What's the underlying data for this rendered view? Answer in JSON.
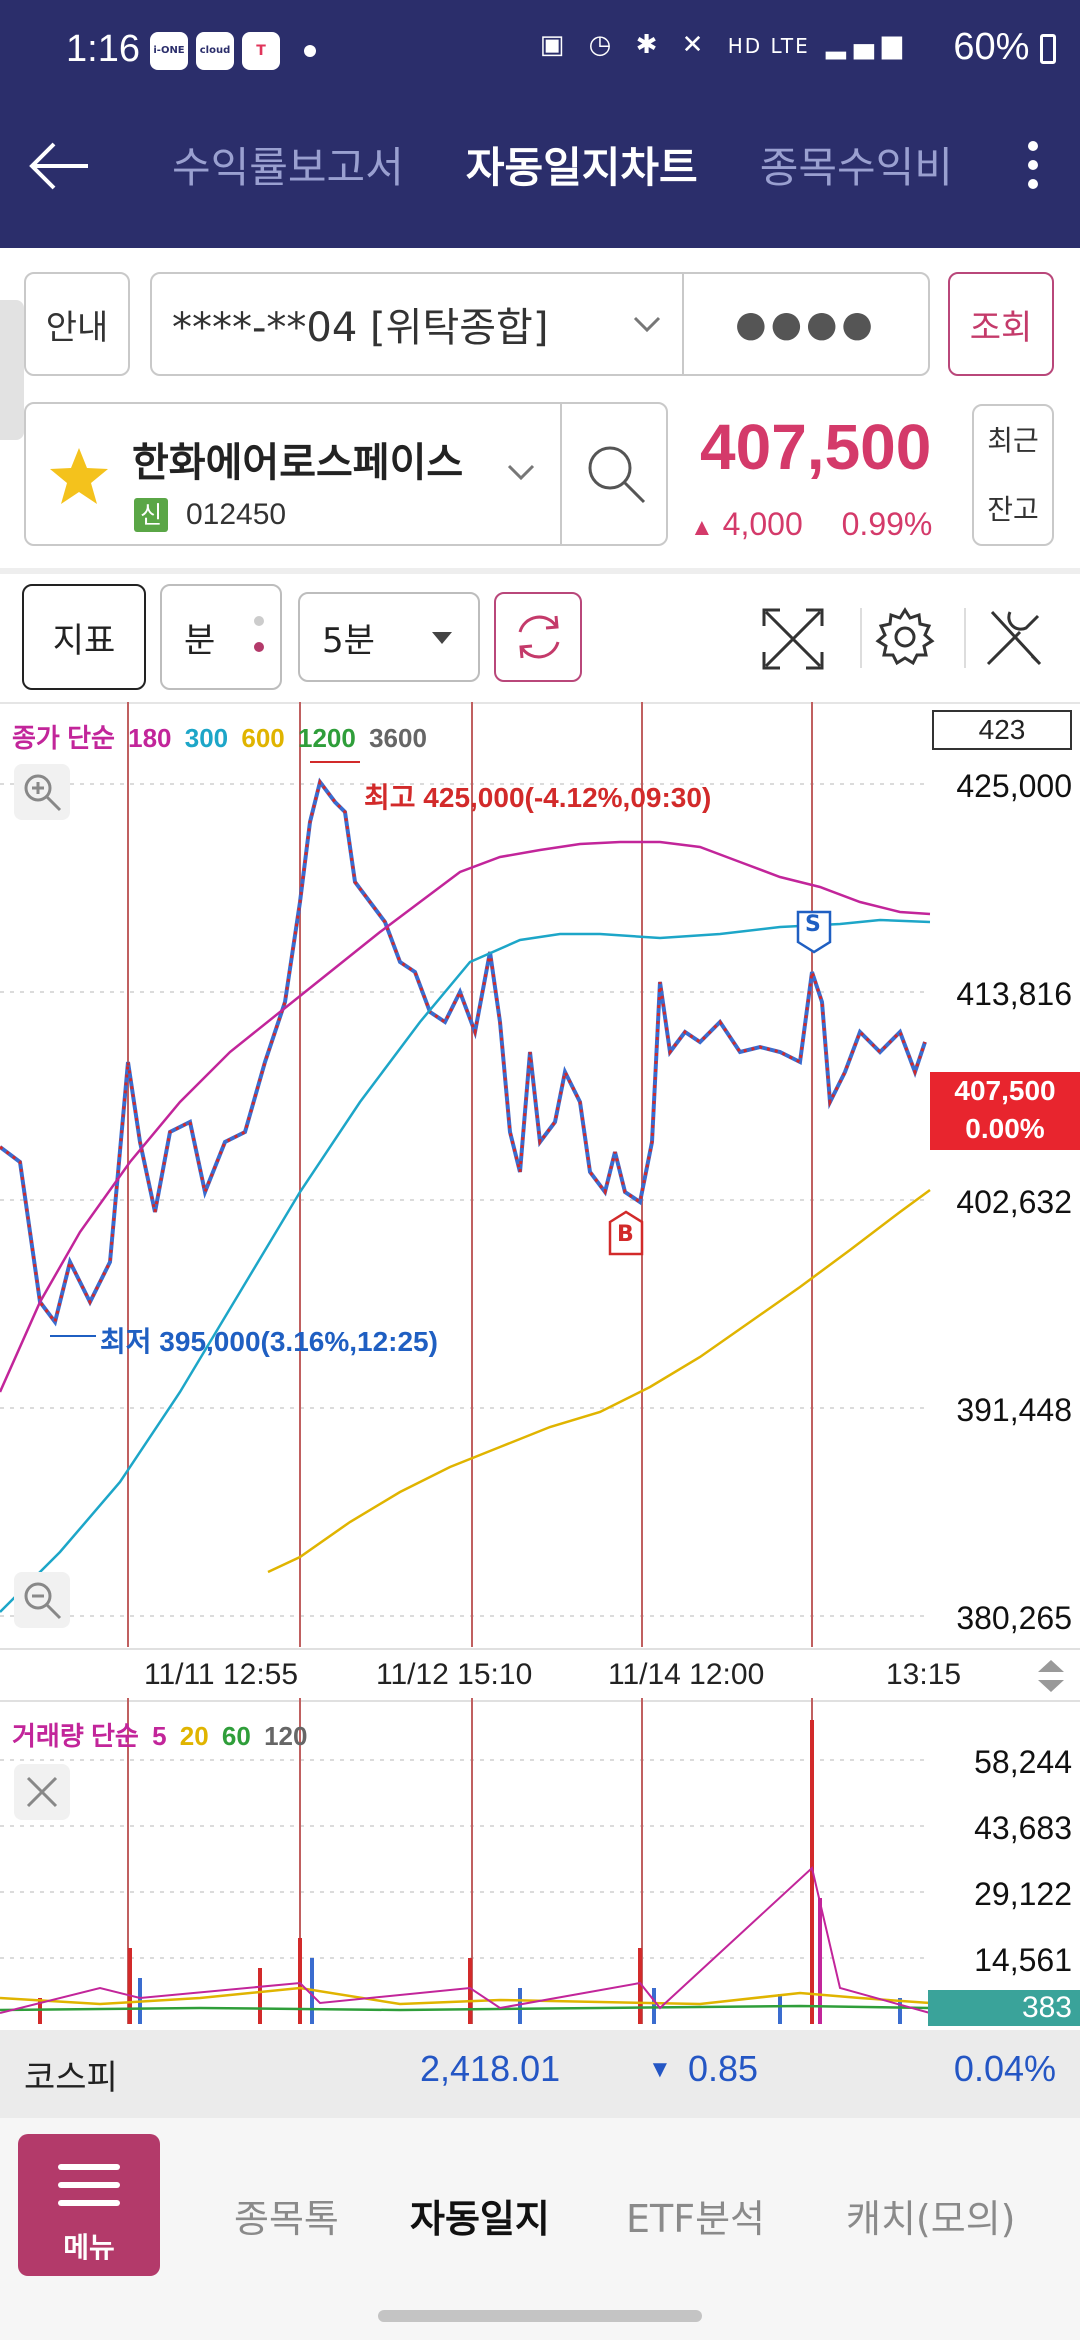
{
  "status": {
    "time": "1:16",
    "battery": "60%",
    "app_icons": [
      "i-ONE",
      "cloud",
      "T"
    ],
    "sys_icons": "HD LTE"
  },
  "header": {
    "tabs": [
      {
        "label": "수익률보고서"
      },
      {
        "label": "자동일지차트"
      },
      {
        "label": "종목수익비"
      }
    ]
  },
  "account": {
    "guide_label": "안내",
    "account_number": "****-**04 [위탁종합]",
    "password_mask": "●●●●",
    "query_label": "조회"
  },
  "stock": {
    "name": "한화에어로스페이스",
    "badge": "신",
    "code": "012450",
    "price": "407,500",
    "change": "4,000",
    "change_pct": "0.99%",
    "recent_label": "최근",
    "balance_label": "잔고"
  },
  "toolbar": {
    "indicator_label": "지표",
    "minute_label": "분",
    "interval_value": "5분"
  },
  "chart": {
    "legend_prefix": "종가 단순",
    "legend_items": [
      {
        "label": "180",
        "color": "#c2259a"
      },
      {
        "label": "300",
        "color": "#1da6c8"
      },
      {
        "label": "600",
        "color": "#e0b400"
      },
      {
        "label": "1200",
        "color": "#2f9e3a"
      },
      {
        "label": "3600",
        "color": "#666666"
      }
    ],
    "top_box": "423",
    "y_labels": [
      "425,000",
      "413,816",
      "402,632",
      "391,448",
      "380,265"
    ],
    "current_price": "407,500",
    "current_pct": "0.00%",
    "high_annotation": "최고 425,000(-4.12%,09:30)",
    "low_annotation": "최저 395,000(3.16%,12:25)",
    "buy_marker": "B",
    "sell_marker": "S",
    "x_labels": [
      "11/11 12:55",
      "11/12 15:10",
      "11/14 12:00",
      "13:15"
    ]
  },
  "volume": {
    "legend_prefix": "거래량 단순",
    "legend_items": [
      {
        "label": "5",
        "color": "#c2259a"
      },
      {
        "label": "20",
        "color": "#e0b400"
      },
      {
        "label": "60",
        "color": "#2f9e3a"
      },
      {
        "label": "120",
        "color": "#666666"
      }
    ],
    "y_labels": [
      "58,244",
      "43,683",
      "29,122",
      "14,561"
    ],
    "current": "383"
  },
  "index": {
    "name": "코스피",
    "value": "2,418.01",
    "change": "0.85",
    "pct": "0.04%"
  },
  "bottom_nav": {
    "menu_label": "메뉴",
    "items": [
      {
        "label": "종목톡"
      },
      {
        "label": "자동일지"
      },
      {
        "label": "ETF분석"
      },
      {
        "label": "캐치(모의)"
      }
    ]
  }
}
